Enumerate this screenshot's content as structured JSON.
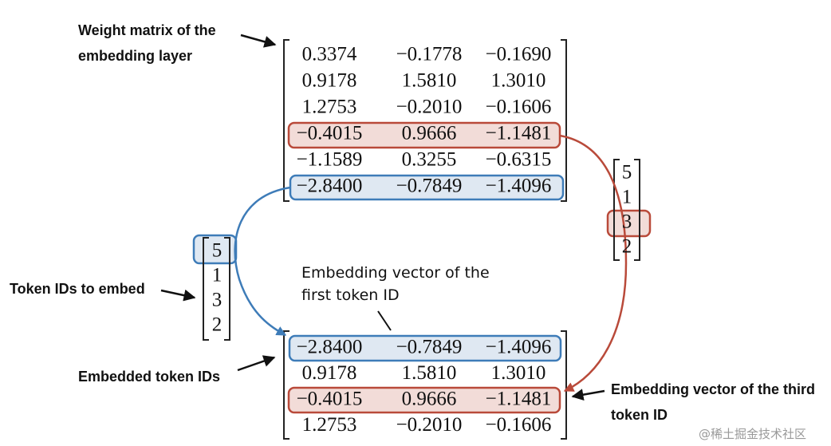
{
  "weight_label": [
    "Weight matrix of the",
    "embedding layer"
  ],
  "weight_matrix": {
    "rows": [
      [
        "0.3374",
        "−0.1778",
        "−0.1690"
      ],
      [
        "0.9178",
        "1.5810",
        "1.3010"
      ],
      [
        "1.2753",
        "−0.2010",
        "−0.1606"
      ],
      [
        "−0.4015",
        "0.9666",
        "−1.1481"
      ],
      [
        "−1.1589",
        "0.3255",
        "−0.6315"
      ],
      [
        "−2.8400",
        "−0.7849",
        "−1.4096"
      ]
    ]
  },
  "token_ids_label": "Token IDs to embed",
  "token_ids": [
    5,
    1,
    3,
    2
  ],
  "token_ids_right": [
    5,
    1,
    3,
    2
  ],
  "first_vector_label": [
    "Embedding vector of the",
    "first token ID"
  ],
  "embedded_label": "Embedded token IDs",
  "embedded_matrix": {
    "rows": [
      [
        "−2.8400",
        "−0.7849",
        "−1.4096"
      ],
      [
        "0.9178",
        "1.5810",
        "1.3010"
      ],
      [
        "−0.4015",
        "0.9666",
        "−1.1481"
      ],
      [
        "1.2753",
        "−0.2010",
        "−0.1606"
      ]
    ]
  },
  "third_vector_label": [
    "Embedding vector of the third",
    "token ID"
  ],
  "watermark": "@稀土掘金技术社区"
}
